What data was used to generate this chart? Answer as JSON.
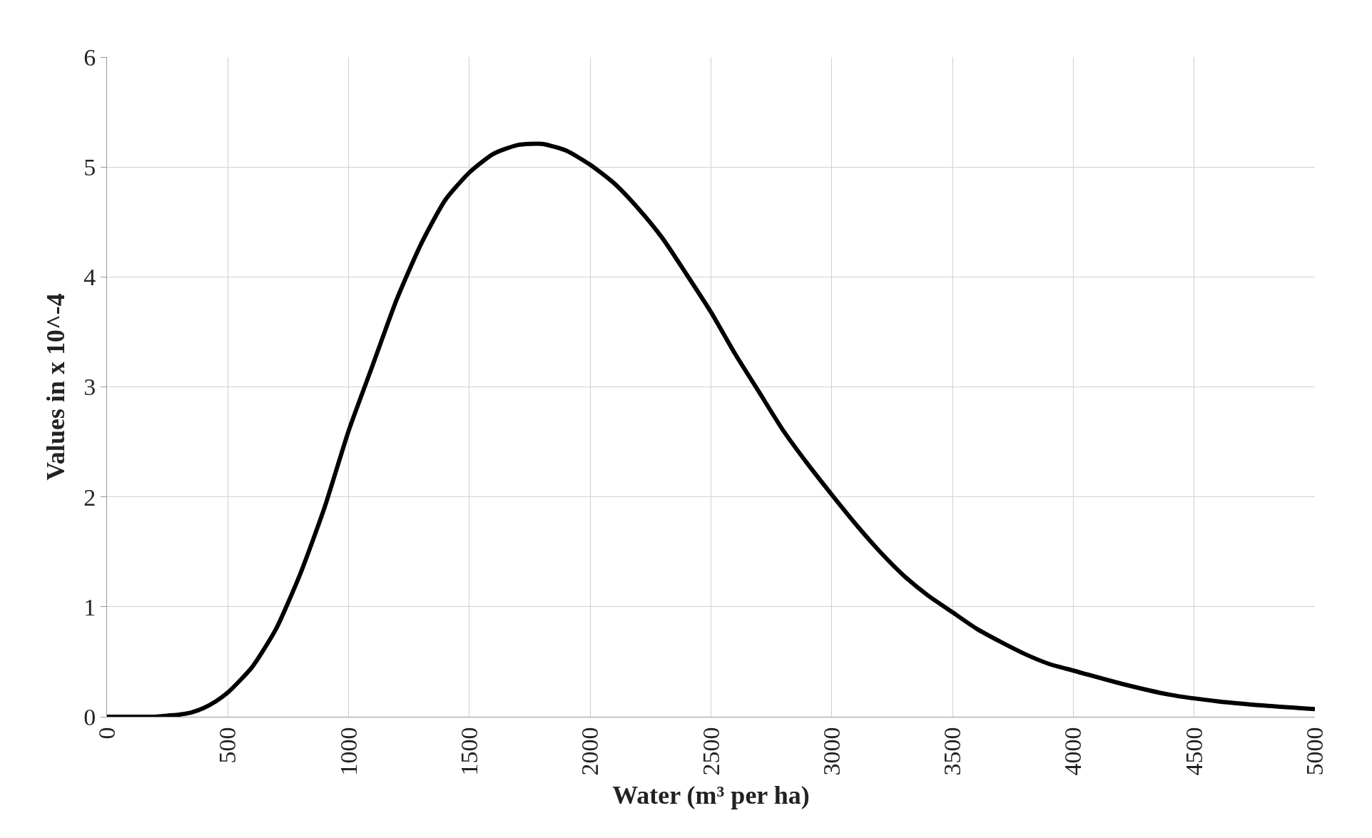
{
  "chart_data": {
    "type": "line",
    "xlabel": "Water (m³ per ha)",
    "ylabel": "Values in x 10^-4",
    "x": [
      0,
      100,
      200,
      250,
      300,
      350,
      400,
      450,
      500,
      600,
      700,
      800,
      900,
      1000,
      1100,
      1200,
      1300,
      1400,
      1500,
      1600,
      1700,
      1800,
      1900,
      2000,
      2100,
      2200,
      2300,
      2400,
      2500,
      2600,
      2700,
      2800,
      2900,
      3000,
      3100,
      3200,
      3300,
      3400,
      3500,
      3600,
      3700,
      3800,
      3900,
      4000,
      4200,
      4400,
      4600,
      4800,
      5000
    ],
    "series": [
      {
        "color": "#000000",
        "values": [
          0,
          0,
          0,
          0.01,
          0.02,
          0.04,
          0.08,
          0.14,
          0.22,
          0.45,
          0.8,
          1.3,
          1.9,
          2.6,
          3.2,
          3.8,
          4.3,
          4.7,
          4.95,
          5.12,
          5.2,
          5.21,
          5.15,
          5.02,
          4.85,
          4.62,
          4.35,
          4.02,
          3.68,
          3.3,
          2.95,
          2.6,
          2.3,
          2.02,
          1.75,
          1.5,
          1.28,
          1.1,
          0.95,
          0.8,
          0.68,
          0.57,
          0.48,
          0.42,
          0.3,
          0.2,
          0.14,
          0.1,
          0.07
        ]
      }
    ],
    "xlim": [
      0,
      5000
    ],
    "xticks": [
      0,
      500,
      1000,
      1500,
      2000,
      2500,
      3000,
      3500,
      4000,
      4500,
      5000
    ],
    "ylim": [
      0,
      6
    ],
    "yticks": [
      0,
      1,
      2,
      3,
      4,
      5,
      6
    ],
    "grid": true,
    "marker": "none",
    "line_style": "solid",
    "legend": false
  }
}
